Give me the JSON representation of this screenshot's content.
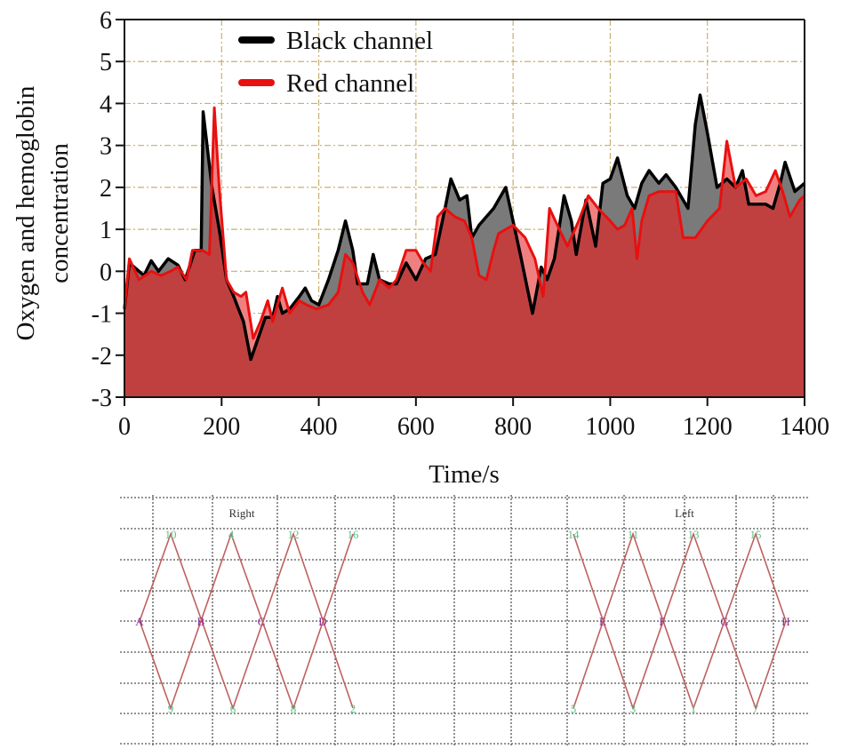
{
  "chart_data": {
    "type": "area",
    "title": "",
    "xlabel": "Time/s",
    "ylabel_line1": "Oxygen and hemoglobin",
    "ylabel_line2": "concentration",
    "xlim": [
      0,
      1400
    ],
    "ylim": [
      -3,
      6
    ],
    "xticks": [
      0,
      200,
      400,
      600,
      800,
      1000,
      1200,
      1400
    ],
    "yticks": [
      -3,
      -2,
      -1,
      0,
      1,
      2,
      3,
      4,
      5,
      6
    ],
    "grid": true,
    "legend_position": "upper-center",
    "series": [
      {
        "name": "Black channel",
        "color": "#000000",
        "fill": "#7a7a7a",
        "points": [
          [
            0,
            -0.9
          ],
          [
            10,
            0.2
          ],
          [
            30,
            0
          ],
          [
            40,
            -0.1
          ],
          [
            55,
            0.25
          ],
          [
            70,
            0
          ],
          [
            90,
            0.3
          ],
          [
            110,
            0.15
          ],
          [
            125,
            -0.2
          ],
          [
            145,
            0.5
          ],
          [
            158,
            0.5
          ],
          [
            162,
            3.8
          ],
          [
            172,
            2.8
          ],
          [
            180,
            2
          ],
          [
            195,
            1
          ],
          [
            210,
            -0.2
          ],
          [
            225,
            -0.6
          ],
          [
            245,
            -1.2
          ],
          [
            260,
            -2.1
          ],
          [
            275,
            -1.6
          ],
          [
            290,
            -1.1
          ],
          [
            305,
            -1.1
          ],
          [
            315,
            -0.6
          ],
          [
            325,
            -1
          ],
          [
            340,
            -0.9
          ],
          [
            360,
            -0.6
          ],
          [
            372,
            -0.4
          ],
          [
            385,
            -0.7
          ],
          [
            400,
            -0.8
          ],
          [
            420,
            -0.2
          ],
          [
            440,
            0.5
          ],
          [
            455,
            1.2
          ],
          [
            470,
            0.5
          ],
          [
            480,
            -0.3
          ],
          [
            500,
            -0.3
          ],
          [
            512,
            0.4
          ],
          [
            525,
            -0.2
          ],
          [
            545,
            -0.3
          ],
          [
            560,
            -0.3
          ],
          [
            580,
            0.2
          ],
          [
            600,
            -0.2
          ],
          [
            620,
            0.3
          ],
          [
            640,
            0.4
          ],
          [
            660,
            1.5
          ],
          [
            672,
            2.2
          ],
          [
            690,
            1.7
          ],
          [
            705,
            1.8
          ],
          [
            715,
            0.8
          ],
          [
            730,
            1.1
          ],
          [
            760,
            1.5
          ],
          [
            785,
            2
          ],
          [
            800,
            1.2
          ],
          [
            815,
            0.4
          ],
          [
            840,
            -1
          ],
          [
            858,
            0.1
          ],
          [
            870,
            -0.2
          ],
          [
            885,
            0.3
          ],
          [
            905,
            1.8
          ],
          [
            920,
            1.2
          ],
          [
            930,
            0.4
          ],
          [
            950,
            1.7
          ],
          [
            970,
            0.6
          ],
          [
            985,
            2.1
          ],
          [
            1000,
            2.2
          ],
          [
            1015,
            2.7
          ],
          [
            1035,
            1.8
          ],
          [
            1050,
            1.5
          ],
          [
            1065,
            2.1
          ],
          [
            1080,
            2.4
          ],
          [
            1100,
            2.1
          ],
          [
            1115,
            2.3
          ],
          [
            1135,
            2
          ],
          [
            1160,
            1.5
          ],
          [
            1175,
            3.5
          ],
          [
            1185,
            4.2
          ],
          [
            1200,
            3.3
          ],
          [
            1220,
            2
          ],
          [
            1240,
            2.2
          ],
          [
            1258,
            2
          ],
          [
            1272,
            2.4
          ],
          [
            1285,
            1.6
          ],
          [
            1300,
            1.6
          ],
          [
            1320,
            1.6
          ],
          [
            1335,
            1.5
          ],
          [
            1350,
            2.1
          ],
          [
            1360,
            2.6
          ],
          [
            1380,
            1.9
          ],
          [
            1400,
            2.1
          ]
        ]
      },
      {
        "name": "Red channel",
        "color": "#e81010",
        "fill": "#f08080",
        "points": [
          [
            0,
            -0.9
          ],
          [
            10,
            0.3
          ],
          [
            30,
            -0.2
          ],
          [
            55,
            0
          ],
          [
            75,
            -0.1
          ],
          [
            95,
            0
          ],
          [
            110,
            0.1
          ],
          [
            128,
            -0.2
          ],
          [
            140,
            0.5
          ],
          [
            160,
            0.5
          ],
          [
            175,
            0.4
          ],
          [
            185,
            3.9
          ],
          [
            195,
            2
          ],
          [
            210,
            -0.2
          ],
          [
            225,
            -0.5
          ],
          [
            240,
            -0.6
          ],
          [
            250,
            -0.5
          ],
          [
            265,
            -1.6
          ],
          [
            280,
            -1.2
          ],
          [
            295,
            -0.7
          ],
          [
            305,
            -1.2
          ],
          [
            325,
            -0.4
          ],
          [
            340,
            -1
          ],
          [
            360,
            -0.7
          ],
          [
            375,
            -0.8
          ],
          [
            395,
            -0.9
          ],
          [
            420,
            -0.8
          ],
          [
            440,
            -0.5
          ],
          [
            455,
            0.4
          ],
          [
            470,
            0.2
          ],
          [
            490,
            -0.5
          ],
          [
            505,
            -0.8
          ],
          [
            525,
            -0.2
          ],
          [
            545,
            -0.4
          ],
          [
            560,
            -0.2
          ],
          [
            580,
            0.5
          ],
          [
            600,
            0.5
          ],
          [
            615,
            0.2
          ],
          [
            630,
            0
          ],
          [
            645,
            1.3
          ],
          [
            660,
            1.5
          ],
          [
            680,
            1.3
          ],
          [
            700,
            1.2
          ],
          [
            715,
            0.8
          ],
          [
            730,
            -0.1
          ],
          [
            745,
            -0.2
          ],
          [
            760,
            0.5
          ],
          [
            770,
            0.9
          ],
          [
            800,
            1.1
          ],
          [
            825,
            0.8
          ],
          [
            845,
            0.3
          ],
          [
            862,
            -0.6
          ],
          [
            875,
            1.5
          ],
          [
            895,
            1
          ],
          [
            912,
            0.6
          ],
          [
            935,
            1.2
          ],
          [
            955,
            1.8
          ],
          [
            975,
            1.5
          ],
          [
            1000,
            1.2
          ],
          [
            1015,
            1
          ],
          [
            1030,
            1.1
          ],
          [
            1045,
            1.5
          ],
          [
            1055,
            0.3
          ],
          [
            1065,
            1.2
          ],
          [
            1080,
            1.8
          ],
          [
            1100,
            1.9
          ],
          [
            1115,
            1.9
          ],
          [
            1135,
            1.9
          ],
          [
            1150,
            0.8
          ],
          [
            1175,
            0.8
          ],
          [
            1200,
            1.2
          ],
          [
            1225,
            1.5
          ],
          [
            1240,
            3.1
          ],
          [
            1258,
            2
          ],
          [
            1280,
            2.2
          ],
          [
            1300,
            1.8
          ],
          [
            1320,
            1.9
          ],
          [
            1340,
            2.4
          ],
          [
            1355,
            1.9
          ],
          [
            1370,
            1.3
          ],
          [
            1390,
            1.7
          ],
          [
            1400,
            1.8
          ]
        ]
      }
    ],
    "base_fill": "#c04040",
    "grid_color": "#c8b070"
  },
  "diagram": {
    "right": {
      "title": "Right",
      "top_labels": [
        "10",
        "4",
        "12",
        "16"
      ],
      "middle_labels": [
        "A",
        "B",
        "C",
        "D"
      ],
      "bottom_labels": [
        "9",
        "6",
        "8",
        "2"
      ]
    },
    "left": {
      "title": "Left",
      "top_labels": [
        "14",
        "11",
        "13",
        "15"
      ],
      "middle_labels": [
        "E",
        "F",
        "G",
        "H"
      ],
      "bottom_labels": [
        "5",
        "3",
        "1",
        "7"
      ]
    },
    "line_color": "#c06060",
    "grid_color": "#555555"
  }
}
